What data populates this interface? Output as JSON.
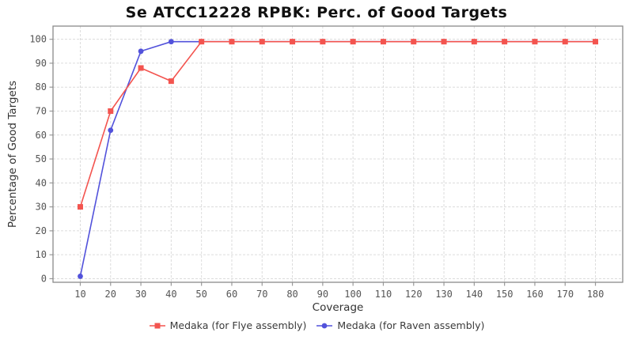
{
  "chart_data": {
    "type": "line",
    "title": "Se ATCC12228 RPBK: Perc. of Good Targets",
    "xlabel": "Coverage",
    "ylabel": "Percentage of Good Targets",
    "x": [
      10,
      20,
      30,
      40,
      50,
      60,
      70,
      80,
      90,
      100,
      110,
      120,
      130,
      140,
      150,
      160,
      170,
      180
    ],
    "series": [
      {
        "name": "Medaka (for Flye assembly)",
        "marker": "square",
        "color": "#f3544f",
        "values": [
          30,
          70,
          88,
          82.5,
          99,
          99,
          99,
          99,
          99,
          99,
          99,
          99,
          99,
          99,
          99,
          99,
          99,
          99
        ]
      },
      {
        "name": "Medaka (for Raven assembly)",
        "marker": "circle",
        "color": "#5252db",
        "values": [
          1,
          62,
          95,
          99,
          99,
          99,
          99,
          99,
          99,
          99,
          99,
          99,
          99,
          99,
          99,
          99,
          99,
          99
        ]
      }
    ],
    "xticks": [
      10,
      20,
      30,
      40,
      50,
      60,
      70,
      80,
      90,
      100,
      110,
      120,
      130,
      140,
      150,
      160,
      170,
      180
    ],
    "yticks": [
      0,
      10,
      20,
      30,
      40,
      50,
      60,
      70,
      80,
      90,
      100
    ],
    "xlim": [
      1,
      189
    ],
    "ylim": [
      -1.5,
      105.5
    ],
    "grid": true,
    "legend_position": "bottom"
  },
  "styles": {
    "background": "#ffffff",
    "grid_color": "#dcdcdc",
    "border_color": "#8a8a8a",
    "tick_color": "#9a9a9a",
    "tick_label_color": "#555555",
    "axis_label_color": "#333333",
    "title_color": "#111111"
  }
}
